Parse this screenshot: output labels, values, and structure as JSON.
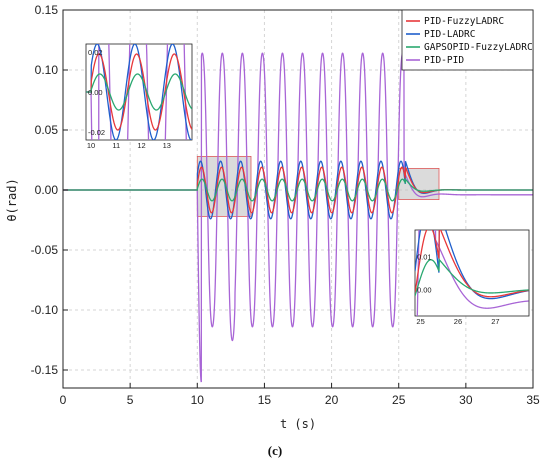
{
  "chart_data": {
    "type": "line",
    "xlabel": "t (s)",
    "ylabel": "θ(rad)",
    "caption": "(c)",
    "xlim": [
      0,
      35
    ],
    "ylim": [
      -0.165,
      0.15
    ],
    "xticks": [
      "0",
      "5",
      "10",
      "15",
      "20",
      "25",
      "30",
      "35"
    ],
    "yticks": [
      "0.15",
      "0.10",
      "0.05",
      "0.00",
      "-0.05",
      "-0.10",
      "-0.15"
    ],
    "grid": true,
    "legend_position": "top-right",
    "colors": {
      "PID-FuzzyLADRC": "#e8383a",
      "PID-LADRC": "#1f5fcc",
      "GAPSOPID-FuzzyLADRC": "#2aa870",
      "PID-PID": "#a865d6"
    },
    "series": [
      {
        "name": "PID-FuzzyLADRC",
        "amplitude": 0.019,
        "frequency_hz": 0.67,
        "t_start": 10,
        "t_end": 25.5
      },
      {
        "name": "PID-LADRC",
        "amplitude": 0.024,
        "frequency_hz": 0.67,
        "t_start": 10,
        "t_end": 25.5
      },
      {
        "name": "GAPSOPID-FuzzyLADRC",
        "amplitude": 0.009,
        "frequency_hz": 0.67,
        "t_start": 10,
        "t_end": 25.5
      },
      {
        "name": "PID-PID",
        "amplitude": 0.12,
        "frequency_hz": 0.67,
        "t_start": 10,
        "t_end": 25.5,
        "peak_max": 0.135,
        "peak_min": -0.16
      }
    ],
    "zoom_regions": [
      {
        "x_range": [
          10,
          14
        ],
        "y_range": [
          -0.022,
          0.028
        ]
      },
      {
        "x_range": [
          25,
          28
        ],
        "y_range": [
          -0.008,
          0.018
        ]
      }
    ],
    "inset1": {
      "xticks": [
        "10",
        "11",
        "12",
        "13"
      ],
      "yticks": [
        "0.02",
        "0.00",
        "-0.02"
      ]
    },
    "inset2": {
      "xticks": [
        "25",
        "26",
        "27"
      ],
      "yticks": [
        "0.01",
        "0.00"
      ]
    }
  }
}
